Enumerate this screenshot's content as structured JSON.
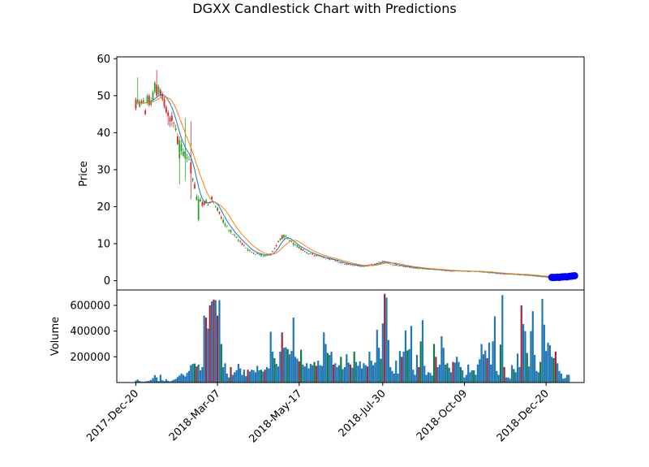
{
  "chart_data": {
    "type": "candlestick",
    "title": "DGXX Candlestick Chart with Predictions",
    "colors": {
      "up": "#2ca02c",
      "down": "#d62728",
      "ma_short": "#1f77b4",
      "ma_long": "#ff7f0e",
      "prediction": "#0000ff",
      "volume": "#1f77b4",
      "volume_up": "#117a45",
      "volume_down": "#a0283c"
    },
    "price_panel": {
      "ylabel": "Price",
      "ylim": [
        -2.5,
        60.5
      ],
      "yticks": [
        0,
        10,
        20,
        30,
        40,
        50,
        60
      ],
      "ytick_labels": [
        "0",
        "10",
        "20",
        "30",
        "40",
        "50",
        "60"
      ],
      "keypoints": [
        [
          0,
          48
        ],
        [
          4,
          48
        ],
        [
          8,
          49
        ],
        [
          12,
          51
        ],
        [
          15,
          49
        ],
        [
          18,
          46
        ],
        [
          20,
          42
        ],
        [
          22,
          38
        ],
        [
          25,
          35
        ],
        [
          28,
          33
        ],
        [
          30,
          28
        ],
        [
          32,
          22
        ],
        [
          35,
          21
        ],
        [
          38,
          21
        ],
        [
          40,
          22
        ],
        [
          43,
          19
        ],
        [
          46,
          16
        ],
        [
          49,
          14
        ],
        [
          52,
          12
        ],
        [
          56,
          10
        ],
        [
          60,
          8
        ],
        [
          64,
          7.2
        ],
        [
          68,
          6.8
        ],
        [
          71,
          7.2
        ],
        [
          74,
          9.5
        ],
        [
          76,
          11.5
        ],
        [
          78,
          12
        ],
        [
          81,
          10.8
        ],
        [
          84,
          9.5
        ],
        [
          88,
          8.3
        ],
        [
          92,
          7.3
        ],
        [
          96,
          6.6
        ],
        [
          100,
          6.1
        ],
        [
          105,
          5.4
        ],
        [
          110,
          4.6
        ],
        [
          115,
          4.2
        ],
        [
          118,
          3.9
        ],
        [
          122,
          4.1
        ],
        [
          126,
          4.6
        ],
        [
          130,
          5.2
        ],
        [
          133,
          4.8
        ],
        [
          137,
          4.2
        ],
        [
          142,
          3.8
        ],
        [
          148,
          3.4
        ],
        [
          155,
          3.1
        ],
        [
          160,
          2.9
        ],
        [
          165,
          2.7
        ],
        [
          172,
          2.6
        ],
        [
          180,
          2.5
        ],
        [
          186,
          2.2
        ],
        [
          192,
          1.9
        ],
        [
          198,
          1.8
        ],
        [
          204,
          1.6
        ],
        [
          210,
          1.3
        ],
        [
          216,
          1.0
        ],
        [
          222,
          0.8
        ],
        [
          228,
          0.75
        ],
        [
          231,
          0.8
        ]
      ],
      "early_candles": [
        {
          "x": 0,
          "o": 49.0,
          "c": 46.5,
          "h": 49.5,
          "l": 46.0
        },
        {
          "x": 1,
          "o": 48.0,
          "c": 49.0,
          "h": 55.0,
          "l": 47.5
        },
        {
          "x": 2,
          "o": 47.0,
          "c": 48.5,
          "h": 49.0,
          "l": 46.8
        },
        {
          "x": 3,
          "o": 48.5,
          "c": 48.0,
          "h": 49.0,
          "l": 47.5
        },
        {
          "x": 4,
          "o": 48.0,
          "c": 48.8,
          "h": 49.5,
          "l": 47.8
        },
        {
          "x": 5,
          "o": 46.0,
          "c": 45.0,
          "h": 46.5,
          "l": 44.8
        },
        {
          "x": 6,
          "o": 48.0,
          "c": 50.0,
          "h": 50.5,
          "l": 47.5
        },
        {
          "x": 7,
          "o": 50.0,
          "c": 47.5,
          "h": 50.5,
          "l": 47.0
        },
        {
          "x": 8,
          "o": 47.5,
          "c": 48.5,
          "h": 49.5,
          "l": 47.0
        },
        {
          "x": 9,
          "o": 49.0,
          "c": 51.0,
          "h": 51.5,
          "l": 48.5
        },
        {
          "x": 10,
          "o": 51.0,
          "c": 53.5,
          "h": 54.0,
          "l": 50.5
        },
        {
          "x": 11,
          "o": 53.0,
          "c": 50.0,
          "h": 57.0,
          "l": 49.5
        },
        {
          "x": 12,
          "o": 50.5,
          "c": 52.5,
          "h": 53.0,
          "l": 50.0
        },
        {
          "x": 13,
          "o": 51.5,
          "c": 50.0,
          "h": 52.0,
          "l": 49.5
        },
        {
          "x": 14,
          "o": 50.5,
          "c": 49.0,
          "h": 51.0,
          "l": 48.5
        },
        {
          "x": 15,
          "o": 49.0,
          "c": 47.0,
          "h": 49.5,
          "l": 46.5
        },
        {
          "x": 16,
          "o": 47.0,
          "c": 45.5,
          "h": 47.5,
          "l": 45.0
        },
        {
          "x": 17,
          "o": 45.5,
          "c": 44.5,
          "h": 46.0,
          "l": 42.0
        },
        {
          "x": 18,
          "o": 44.0,
          "c": 43.0,
          "h": 44.5,
          "l": 41.5
        }
      ],
      "spike_candles": [
        {
          "x": 23,
          "o": 33.0,
          "c": 38.0,
          "h": 39.0,
          "l": 26.0
        },
        {
          "x": 26,
          "o": 33.0,
          "c": 35.0,
          "h": 44.0,
          "l": 27.0
        },
        {
          "x": 29,
          "o": 32.0,
          "c": 29.0,
          "h": 43.0,
          "l": 22.0
        },
        {
          "x": 33,
          "o": 16.5,
          "c": 22.0,
          "h": 23.0,
          "l": 16.0
        }
      ],
      "predictions": [
        {
          "x": 219,
          "y": 0.9
        },
        {
          "x": 220,
          "y": 0.85
        },
        {
          "x": 221,
          "y": 0.9
        },
        {
          "x": 222,
          "y": 0.95
        },
        {
          "x": 223,
          "y": 0.9
        },
        {
          "x": 224,
          "y": 1.0
        },
        {
          "x": 225,
          "y": 1.05
        },
        {
          "x": 226,
          "y": 1.1
        },
        {
          "x": 227,
          "y": 1.05
        },
        {
          "x": 228,
          "y": 1.15
        },
        {
          "x": 229,
          "y": 1.2
        },
        {
          "x": 230,
          "y": 1.3
        },
        {
          "x": 231,
          "y": 1.35
        }
      ]
    },
    "volume_panel": {
      "ylabel": "Volume",
      "ylim": [
        0,
        720000
      ],
      "yticks": [
        200000,
        400000,
        600000
      ],
      "ytick_labels": [
        "200000",
        "400000",
        "600000"
      ],
      "volumes": [
        15000,
        23000,
        12000,
        8000,
        6000,
        9000,
        11000,
        14000,
        20000,
        35000,
        58000,
        40000,
        12000,
        60000,
        18000,
        12000,
        25000,
        14000,
        9000,
        15000,
        22000,
        28000,
        42000,
        55000,
        70000,
        60000,
        48000,
        75000,
        90000,
        135000,
        145000,
        148000,
        125000,
        140000,
        95000,
        120000,
        520000,
        505000,
        420000,
        600000,
        630000,
        645000,
        640000,
        520000,
        640000,
        300000,
        120000,
        150000,
        70000,
        40000,
        120000,
        60000,
        80000,
        95000,
        145000,
        110000,
        60000,
        100000,
        50000,
        100000,
        85000,
        100000,
        95000,
        80000,
        130000,
        95000,
        100000,
        85000,
        100000,
        120000,
        110000,
        395000,
        240000,
        190000,
        145000,
        125000,
        240000,
        390000,
        270000,
        275000,
        260000,
        220000,
        245000,
        505000,
        200000,
        185000,
        165000,
        255000,
        140000,
        125000,
        150000,
        110000,
        145000,
        135000,
        160000,
        130000,
        170000,
        135000,
        130000,
        390000,
        300000,
        230000,
        215000,
        240000,
        140000,
        150000,
        120000,
        135000,
        200000,
        105000,
        120000,
        220000,
        155000,
        140000,
        115000,
        240000,
        160000,
        130000,
        165000,
        110000,
        150000,
        135000,
        125000,
        240000,
        170000,
        135000,
        155000,
        410000,
        270000,
        185000,
        460000,
        690000,
        660000,
        330000,
        120000,
        90000,
        70000,
        170000,
        70000,
        245000,
        200000,
        240000,
        405000,
        250000,
        260000,
        440000,
        100000,
        60000,
        215000,
        120000,
        320000,
        485000,
        130000,
        60000,
        80000,
        75000,
        55000,
        300000,
        200000,
        120000,
        140000,
        360000,
        270000,
        140000,
        150000,
        115000,
        80000,
        160000,
        155000,
        200000,
        160000,
        120000,
        95000,
        40000,
        60000,
        140000,
        80000,
        95000,
        95000,
        60000,
        140000,
        180000,
        300000,
        220000,
        250000,
        190000,
        310000,
        140000,
        320000,
        515000,
        90000,
        60000,
        295000,
        680000,
        120000,
        40000,
        40000,
        30000,
        135000,
        105000,
        80000,
        225000,
        120000,
        600000,
        455000,
        400000,
        230000,
        125000,
        400000,
        555000,
        215000,
        90000,
        80000,
        160000,
        650000,
        450000,
        245000,
        310000,
        290000,
        200000,
        190000,
        240000,
        150000,
        90000,
        70000,
        30000,
        35000,
        60000,
        60000
      ]
    },
    "xaxis": {
      "range": [
        -10,
        236
      ],
      "ticks": [
        0,
        43,
        86,
        130,
        173,
        216
      ],
      "tick_labels": [
        "2017-Dec-20",
        "2018-Mar-07",
        "2018-May-17",
        "2018-Jul-30",
        "2018-Oct-09",
        "2018-Dec-20"
      ]
    }
  }
}
